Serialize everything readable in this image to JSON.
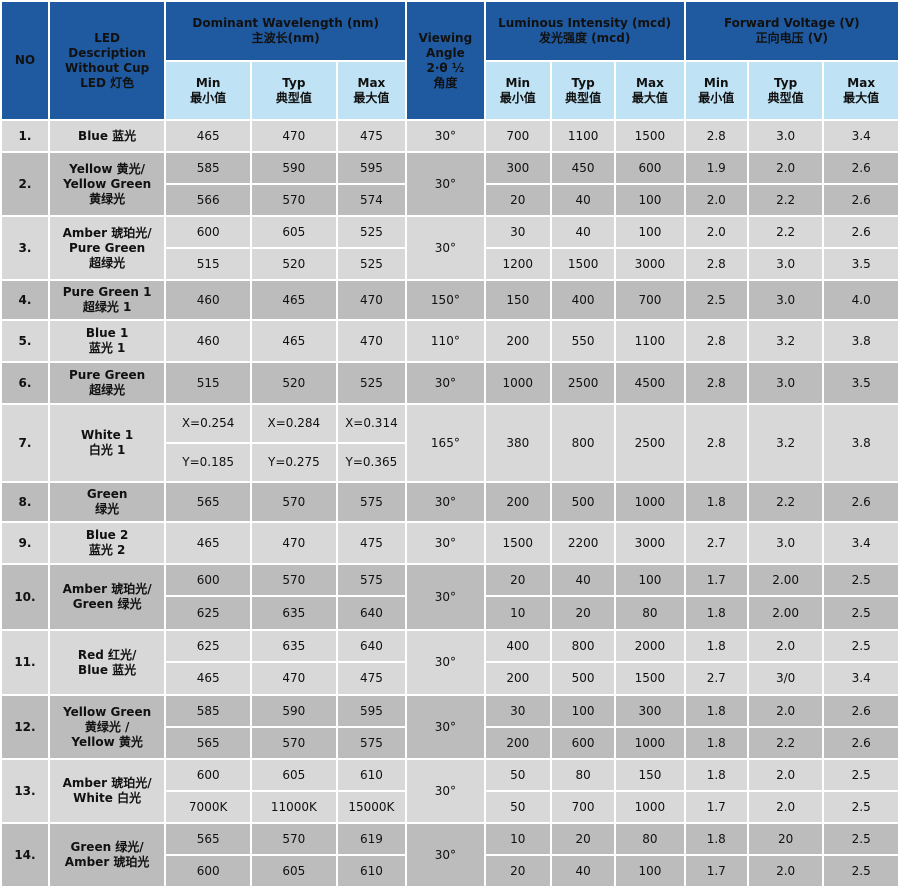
{
  "header": {
    "no": "NO",
    "description": "LED\nDescription\nWithout Cup\nLED 灯色",
    "dominant_wavelength": "Dominant Wavelength (nm)\n主波长(nm)",
    "viewing_angle": "Viewing\nAngle\n2·θ ½\n角度",
    "luminous_intensity": "Luminous Intensity (mcd)\n发光强度 (mcd)",
    "forward_voltage": "Forward Voltage (V)\n正向电压 (V)",
    "min": "Min\n最小值",
    "typ": "Typ\n典型值",
    "max": "Max\n最大值"
  },
  "rows": [
    {
      "no": "1.",
      "desc": "Blue 蓝光",
      "angle": "30°",
      "lines": [
        [
          "465",
          "470",
          "475",
          "700",
          "1100",
          "1500",
          "2.8",
          "3.0",
          "3.4"
        ]
      ]
    },
    {
      "no": "2.",
      "desc": "Yellow 黄光/\nYellow Green\n黄绿光",
      "angle": "30°",
      "lines": [
        [
          "585",
          "590",
          "595",
          "300",
          "450",
          "600",
          "1.9",
          "2.0",
          "2.6"
        ],
        [
          "566",
          "570",
          "574",
          "20",
          "40",
          "100",
          "2.0",
          "2.2",
          "2.6"
        ]
      ]
    },
    {
      "no": "3.",
      "desc": "Amber 琥珀光/\nPure Green\n超绿光",
      "angle": "30°",
      "lines": [
        [
          "600",
          "605",
          "525",
          "30",
          "40",
          "100",
          "2.0",
          "2.2",
          "2.6"
        ],
        [
          "515",
          "520",
          "525",
          "1200",
          "1500",
          "3000",
          "2.8",
          "3.0",
          "3.5"
        ]
      ]
    },
    {
      "no": "4.",
      "desc": "Pure Green 1\n超绿光 1",
      "angle": "150°",
      "lines": [
        [
          "460",
          "465",
          "470",
          "150",
          "400",
          "700",
          "2.5",
          "3.0",
          "4.0"
        ]
      ]
    },
    {
      "no": "5.",
      "desc": "Blue 1\n蓝光 1",
      "angle": "110°",
      "lines": [
        [
          "460",
          "465",
          "470",
          "200",
          "550",
          "1100",
          "2.8",
          "3.2",
          "3.8"
        ]
      ]
    },
    {
      "no": "6.",
      "desc": "Pure Green\n超绿光",
      "angle": "30°",
      "lines": [
        [
          "515",
          "520",
          "525",
          "1000",
          "2500",
          "4500",
          "2.8",
          "3.0",
          "3.5"
        ]
      ]
    },
    {
      "no": "7.",
      "desc": "White 1\n白光 1",
      "angle": "165°",
      "split_wavelength": [
        [
          "X=0.254",
          "X=0.284",
          "X=0.314"
        ],
        [
          "Y=0.185",
          "Y=0.275",
          "Y=0.365"
        ]
      ],
      "lines": [
        [
          "",
          "",
          "",
          "380",
          "800",
          "2500",
          "2.8",
          "3.2",
          "3.8"
        ]
      ]
    },
    {
      "no": "8.",
      "desc": "Green\n绿光",
      "angle": "30°",
      "lines": [
        [
          "565",
          "570",
          "575",
          "200",
          "500",
          "1000",
          "1.8",
          "2.2",
          "2.6"
        ]
      ]
    },
    {
      "no": "9.",
      "desc": "Blue 2\n蓝光 2",
      "angle": "30°",
      "lines": [
        [
          "465",
          "470",
          "475",
          "1500",
          "2200",
          "3000",
          "2.7",
          "3.0",
          "3.4"
        ]
      ]
    },
    {
      "no": "10.",
      "desc": "Amber 琥珀光/\nGreen 绿光",
      "angle": "30°",
      "lines": [
        [
          "600",
          "570",
          "575",
          "20",
          "40",
          "100",
          "1.7",
          "2.00",
          "2.5"
        ],
        [
          "625",
          "635",
          "640",
          "10",
          "20",
          "80",
          "1.8",
          "2.00",
          "2.5"
        ]
      ]
    },
    {
      "no": "11.",
      "desc": "Red 红光/\nBlue 蓝光",
      "angle": "30°",
      "lines": [
        [
          "625",
          "635",
          "640",
          "400",
          "800",
          "2000",
          "1.8",
          "2.0",
          "2.5"
        ],
        [
          "465",
          "470",
          "475",
          "200",
          "500",
          "1500",
          "2.7",
          "3/0",
          "3.4"
        ]
      ]
    },
    {
      "no": "12.",
      "desc": "Yellow Green\n黄绿光 /\nYellow 黄光",
      "angle": "30°",
      "lines": [
        [
          "585",
          "590",
          "595",
          "30",
          "100",
          "300",
          "1.8",
          "2.0",
          "2.6"
        ],
        [
          "565",
          "570",
          "575",
          "200",
          "600",
          "1000",
          "1.8",
          "2.2",
          "2.6"
        ]
      ]
    },
    {
      "no": "13.",
      "desc": "Amber 琥珀光/\nWhite 白光",
      "angle": "30°",
      "lines": [
        [
          "600",
          "605",
          "610",
          "50",
          "80",
          "150",
          "1.8",
          "2.0",
          "2.5"
        ],
        [
          "7000K",
          "11000K",
          "15000K",
          "50",
          "700",
          "1000",
          "1.7",
          "2.0",
          "2.5"
        ]
      ]
    },
    {
      "no": "14.",
      "desc": "Green 绿光/\nAmber 琥珀光",
      "angle": "30°",
      "lines": [
        [
          "565",
          "570",
          "619",
          "10",
          "20",
          "80",
          "1.8",
          "20",
          "2.5"
        ],
        [
          "600",
          "605",
          "610",
          "20",
          "40",
          "100",
          "1.7",
          "2.0",
          "2.5"
        ]
      ]
    }
  ]
}
